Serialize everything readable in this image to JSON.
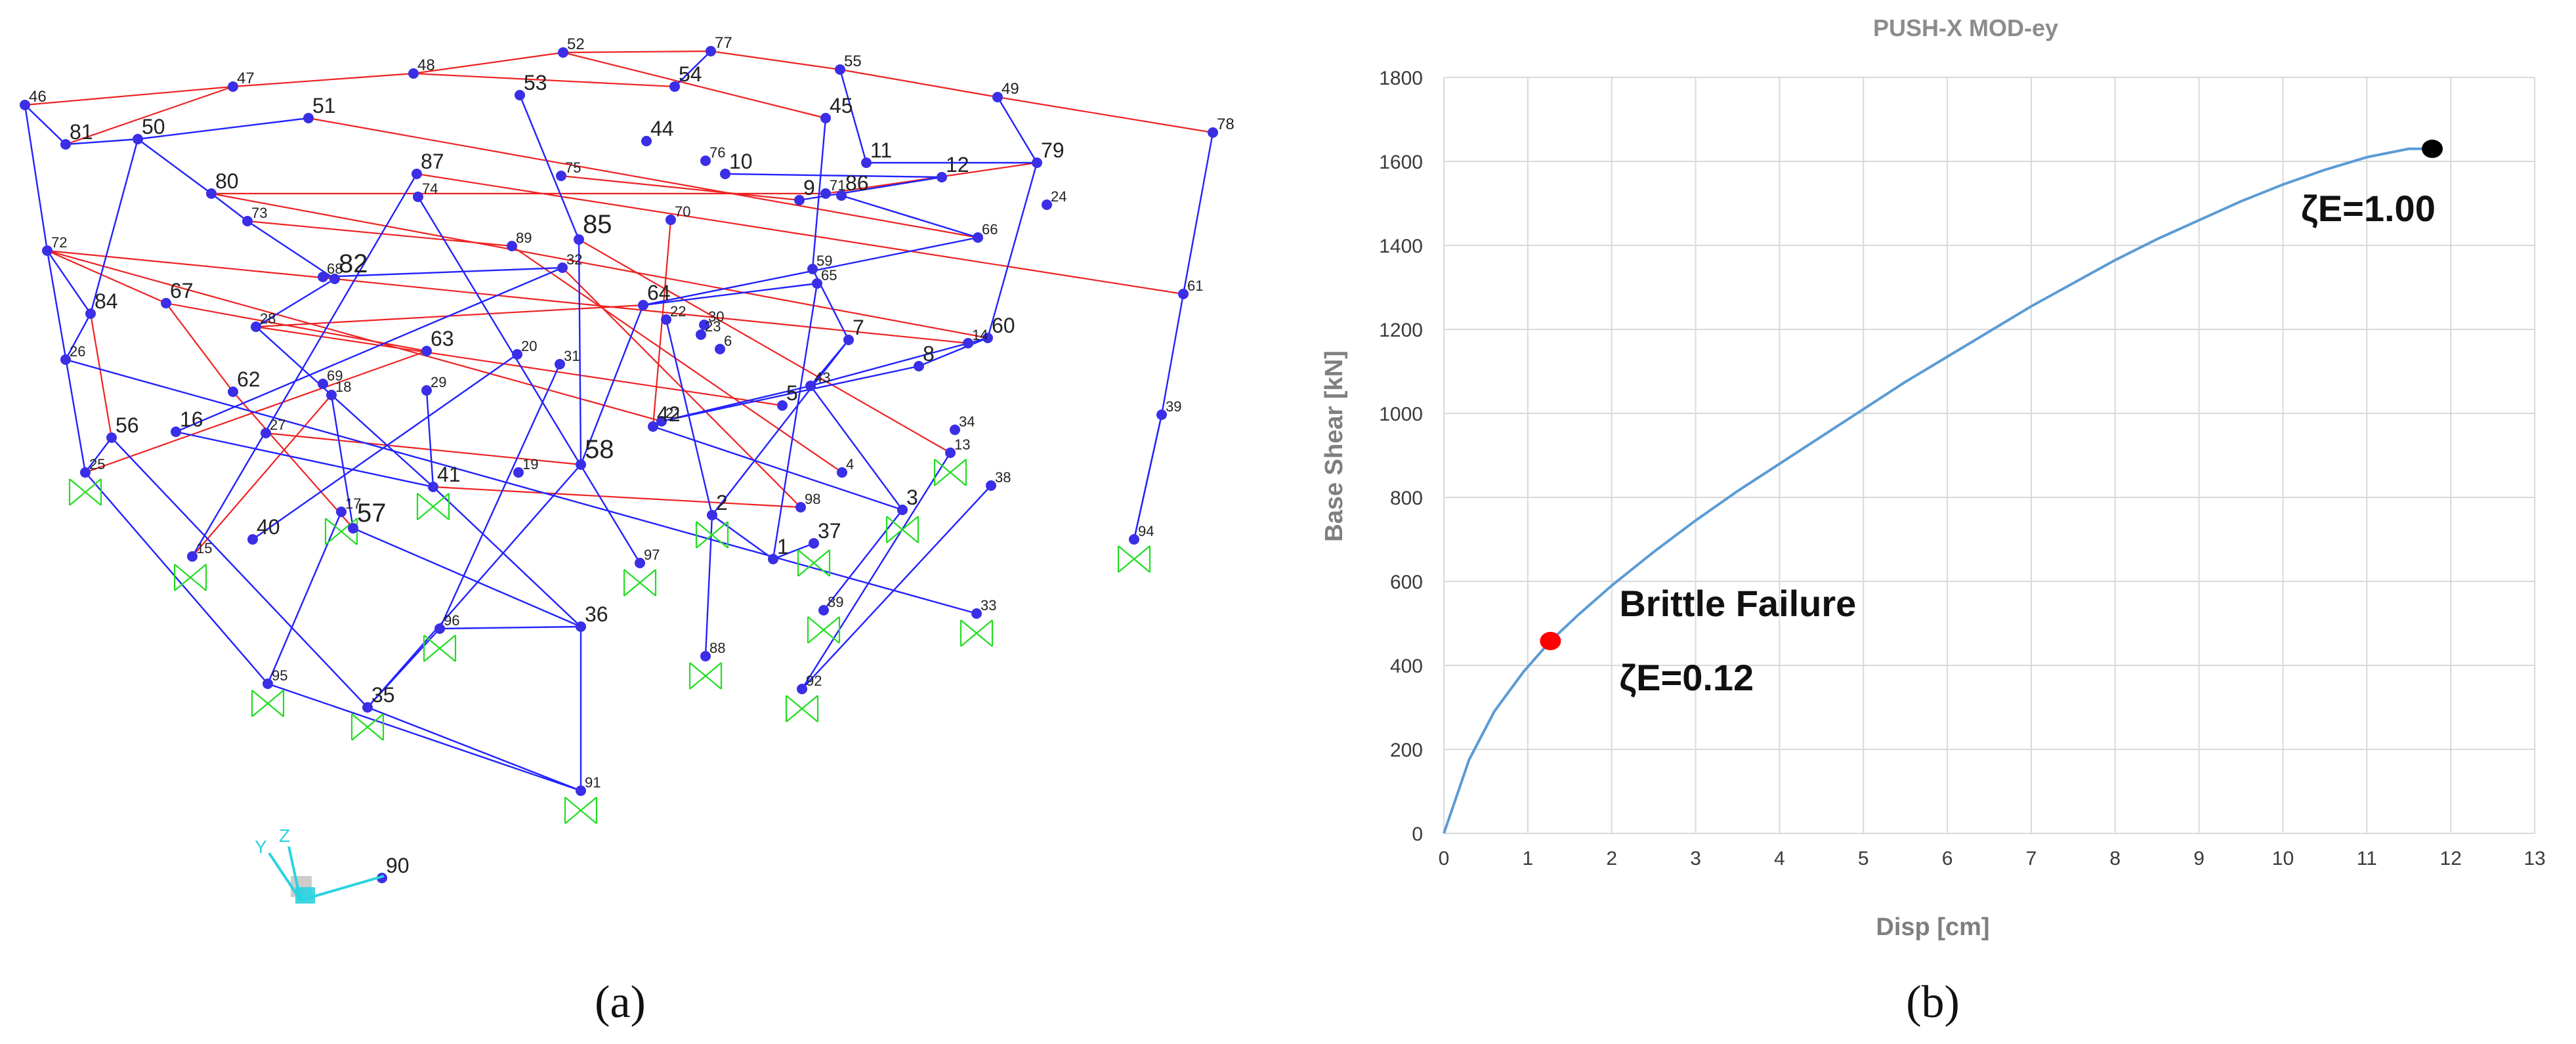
{
  "figure": {
    "panel_a_label": "(a)",
    "panel_b_label": "(b)",
    "axes_triad": {
      "y_label": "Y",
      "z_label": "Z"
    },
    "colors": {
      "frame_blue": "#2222ff",
      "frame_red": "#ee2222",
      "support_green": "#22dd22",
      "node_fill": "#3a2ee6",
      "triad_cyan": "#29d3e0"
    },
    "node_labels": [
      "46",
      "47",
      "48",
      "52",
      "77",
      "55",
      "49",
      "78",
      "81",
      "50",
      "51",
      "53",
      "54",
      "45",
      "44",
      "87",
      "80",
      "73",
      "74",
      "75",
      "76",
      "10",
      "11",
      "12",
      "9",
      "71",
      "86",
      "79",
      "72",
      "82",
      "68",
      "89",
      "85",
      "70",
      "59",
      "65",
      "66",
      "84",
      "67",
      "28",
      "32",
      "64",
      "22",
      "7",
      "60",
      "61",
      "26",
      "63",
      "20",
      "31",
      "23",
      "8",
      "14",
      "62",
      "18",
      "29",
      "30",
      "21",
      "43",
      "5",
      "39",
      "56",
      "16",
      "27",
      "42",
      "4",
      "13",
      "38",
      "25",
      "57",
      "17",
      "41",
      "58",
      "2",
      "98",
      "3",
      "1",
      "37",
      "15",
      "40",
      "97",
      "94",
      "96",
      "36",
      "89",
      "33",
      "95",
      "35",
      "88",
      "92",
      "91",
      "90",
      "6",
      "34",
      "24",
      "69",
      "19"
    ]
  },
  "chart_data": {
    "type": "line",
    "title": "PUSH-X MOD-ey",
    "xlabel": "Disp [cm]",
    "ylabel": "Base Shear [kN]",
    "xlim": [
      0,
      13
    ],
    "ylim": [
      0,
      1800
    ],
    "xticks": [
      0,
      1,
      2,
      3,
      4,
      5,
      6,
      7,
      8,
      9,
      10,
      11,
      12,
      13
    ],
    "yticks": [
      0,
      200,
      400,
      600,
      800,
      1000,
      1200,
      1400,
      1600,
      1800
    ],
    "grid": true,
    "line_color": "#5b9bd5",
    "series": [
      {
        "x": [
          0,
          0.3,
          0.6,
          0.95,
          1.27,
          1.6,
          2.0,
          2.5,
          3.0,
          3.5,
          4.0,
          4.5,
          5.0,
          5.5,
          6.0,
          6.5,
          7.0,
          7.5,
          8.0,
          8.5,
          9.0,
          9.5,
          10.0,
          10.5,
          11.0,
          11.5,
          11.78
        ],
        "y": [
          0,
          175,
          290,
          385,
          458,
          520,
          590,
          670,
          745,
          815,
          880,
          945,
          1010,
          1075,
          1135,
          1195,
          1255,
          1310,
          1365,
          1415,
          1460,
          1505,
          1545,
          1580,
          1610,
          1630,
          1630
        ]
      }
    ],
    "points": [
      {
        "x": 1.27,
        "y": 458,
        "color": "#ff0000",
        "label": "Brittle Failure",
        "sublabel": "ζE=0.12"
      },
      {
        "x": 11.78,
        "y": 1630,
        "color": "#000000",
        "label": "ζE=1.00"
      }
    ]
  }
}
